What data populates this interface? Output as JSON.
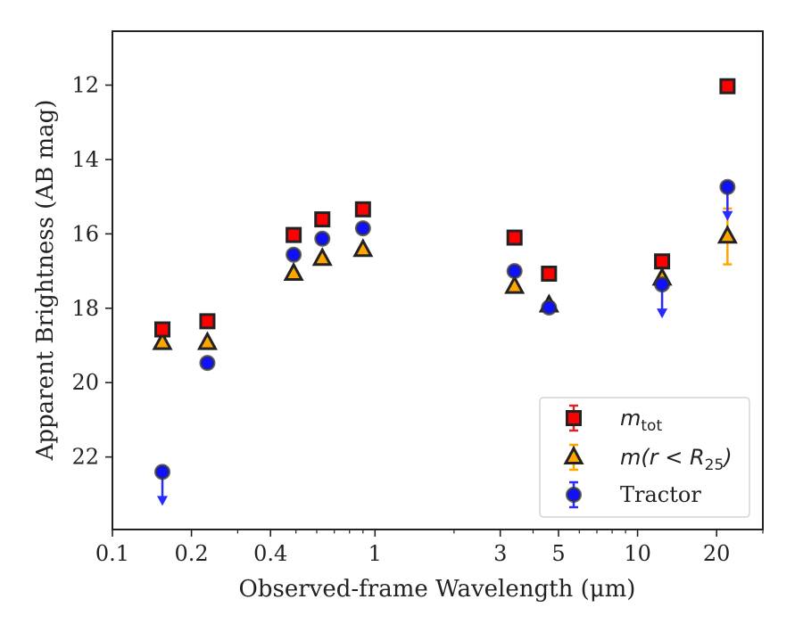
{
  "chart_data": {
    "type": "scatter",
    "title": "",
    "xlabel": "Observed-frame Wavelength (μm)",
    "ylabel": "Apparent Brightness (AB mag)",
    "xscale": "log",
    "xlim": [
      0.1,
      30
    ],
    "ylim": [
      23.95,
      10.55
    ],
    "y_inverted": true,
    "x_ticks": [
      0.1,
      0.2,
      0.4,
      1,
      3,
      5,
      10,
      20
    ],
    "x_tick_labels": [
      "0.1",
      "0.2",
      "0.4",
      "1",
      "3",
      "5",
      "10",
      "20"
    ],
    "y_ticks": [
      12,
      14,
      16,
      18,
      20,
      22
    ],
    "y_tick_labels": [
      "12",
      "14",
      "16",
      "18",
      "20",
      "22"
    ],
    "legend_position": "lower right",
    "grid": false,
    "series": [
      {
        "name": "m_tot",
        "legend_main": "m",
        "legend_sub": "tot",
        "marker": "square",
        "color": "#ff0000",
        "edge_color": "#222222",
        "errorbar_color": "#d62728",
        "points": [
          {
            "x": 0.155,
            "y": 18.57,
            "err": 0.05
          },
          {
            "x": 0.23,
            "y": 18.35,
            "err": 0.05
          },
          {
            "x": 0.49,
            "y": 16.03,
            "err": 0.05
          },
          {
            "x": 0.63,
            "y": 15.61,
            "err": 0.05
          },
          {
            "x": 0.9,
            "y": 15.34,
            "err": 0.05
          },
          {
            "x": 3.4,
            "y": 16.1,
            "err": 0.05
          },
          {
            "x": 4.6,
            "y": 17.07,
            "err": 0.05
          },
          {
            "x": 12.4,
            "y": 16.74,
            "err": 0.05
          },
          {
            "x": 22.0,
            "y": 12.03,
            "err": 0.05
          }
        ]
      },
      {
        "name": "m(r < R_25)",
        "legend_main": "m(r < R",
        "legend_sub": "25",
        "legend_close": ")",
        "marker": "triangle",
        "color": "#ffa500",
        "edge_color": "#222222",
        "errorbar_color": "#ffa500",
        "points": [
          {
            "x": 0.155,
            "y": 18.93,
            "err": 0.05
          },
          {
            "x": 0.23,
            "y": 18.93,
            "err": 0.05
          },
          {
            "x": 0.49,
            "y": 17.07,
            "err": 0.05
          },
          {
            "x": 0.63,
            "y": 16.67,
            "err": 0.05
          },
          {
            "x": 0.9,
            "y": 16.43,
            "err": 0.05
          },
          {
            "x": 3.4,
            "y": 17.42,
            "err": 0.05
          },
          {
            "x": 4.6,
            "y": 17.92,
            "err": 0.05
          },
          {
            "x": 12.4,
            "y": 17.2,
            "err": 0.05
          },
          {
            "x": 22.0,
            "y": 16.07,
            "err": 0.75
          }
        ]
      },
      {
        "name": "Tractor",
        "legend_main": "Tractor",
        "marker": "circle",
        "color": "#1010ff",
        "edge_color": "#333333",
        "errorbar_color": "#2a2aff",
        "points": [
          {
            "x": 0.155,
            "y": 22.4,
            "err": 0.05,
            "upper_limit": true
          },
          {
            "x": 0.23,
            "y": 19.47,
            "err": 0.05
          },
          {
            "x": 0.49,
            "y": 16.56,
            "err": 0.05
          },
          {
            "x": 0.63,
            "y": 16.13,
            "err": 0.05
          },
          {
            "x": 0.9,
            "y": 15.85,
            "err": 0.05
          },
          {
            "x": 3.4,
            "y": 17.0,
            "err": 0.05
          },
          {
            "x": 4.6,
            "y": 17.98,
            "err": 0.05
          },
          {
            "x": 12.4,
            "y": 17.36,
            "err": 0.05,
            "upper_limit": true
          },
          {
            "x": 22.0,
            "y": 14.74,
            "err": 0.05,
            "upper_limit": true
          }
        ]
      }
    ]
  }
}
